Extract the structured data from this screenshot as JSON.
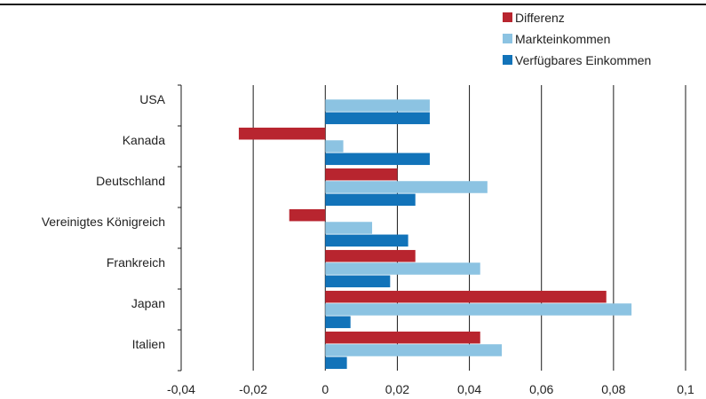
{
  "chart_data": {
    "type": "bar",
    "orientation": "horizontal",
    "categories": [
      "USA",
      "Kanada",
      "Deutschland",
      "Vereinigtes Königreich",
      "Frankreich",
      "Japan",
      "Italien"
    ],
    "series": [
      {
        "name": "Differenz",
        "color": "#b8252f",
        "values": [
          null,
          -0.024,
          0.02,
          -0.01,
          0.025,
          0.078,
          0.043
        ]
      },
      {
        "name": "Markteinkommen",
        "color": "#8cc3e2",
        "values": [
          0.029,
          0.005,
          0.045,
          0.013,
          0.043,
          0.085,
          0.049
        ]
      },
      {
        "name": "Verfügbares Einkommen",
        "color": "#1273b9",
        "values": [
          0.029,
          0.029,
          0.025,
          0.023,
          0.018,
          0.007,
          0.006
        ]
      }
    ],
    "xlim": [
      -0.04,
      0.1
    ],
    "xticks": [
      -0.04,
      -0.02,
      0,
      0.02,
      0.04,
      0.06,
      0.08,
      0.1
    ],
    "xtick_labels": [
      "-0,04",
      "-0,02",
      "0",
      "0,02",
      "0,04",
      "0,06",
      "0,08",
      "0,1"
    ],
    "grid": "vertical",
    "legend_position": "top-right"
  }
}
